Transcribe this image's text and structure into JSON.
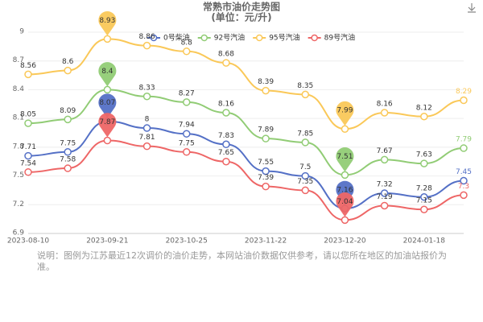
{
  "chart_data": {
    "type": "line",
    "title": "常熟市油价走势图",
    "subtitle": "(单位：元/升)",
    "categories": [
      "2023-08-10",
      null,
      "2023-09-21",
      null,
      "2023-10-25",
      null,
      "2023-11-22",
      null,
      "2023-12-20",
      null,
      "2024-01-18",
      null
    ],
    "series": [
      {
        "name": "0号柴油",
        "color": "#5470c6",
        "values": [
          7.71,
          7.75,
          8.07,
          8,
          7.94,
          7.83,
          7.55,
          7.5,
          7.16,
          7.32,
          7.28,
          7.45
        ]
      },
      {
        "name": "92号汽油",
        "color": "#91cc75",
        "values": [
          8.05,
          8.09,
          8.4,
          8.33,
          8.27,
          8.16,
          7.89,
          7.85,
          7.51,
          7.67,
          7.63,
          7.79
        ]
      },
      {
        "name": "95号汽油",
        "color": "#fac858",
        "values": [
          8.56,
          8.6,
          8.93,
          8.86,
          8.8,
          8.68,
          8.39,
          8.35,
          7.99,
          8.16,
          8.12,
          8.29
        ]
      },
      {
        "name": "89号汽油",
        "color": "#ee6666",
        "values": [
          7.54,
          7.58,
          7.87,
          7.81,
          7.75,
          7.65,
          7.39,
          7.35,
          7.04,
          7.19,
          7.15,
          7.3
        ]
      }
    ],
    "ylim": [
      6.9,
      9
    ],
    "yticks": [
      6.9,
      7.2,
      7.5,
      7.8,
      8.1,
      8.4,
      8.7,
      9
    ],
    "grid": true,
    "note": "说明：图例为江苏最近12次调价的油价走势，本网站油价数据仅供参考，请以您所在地区的加油站报价为准。"
  }
}
